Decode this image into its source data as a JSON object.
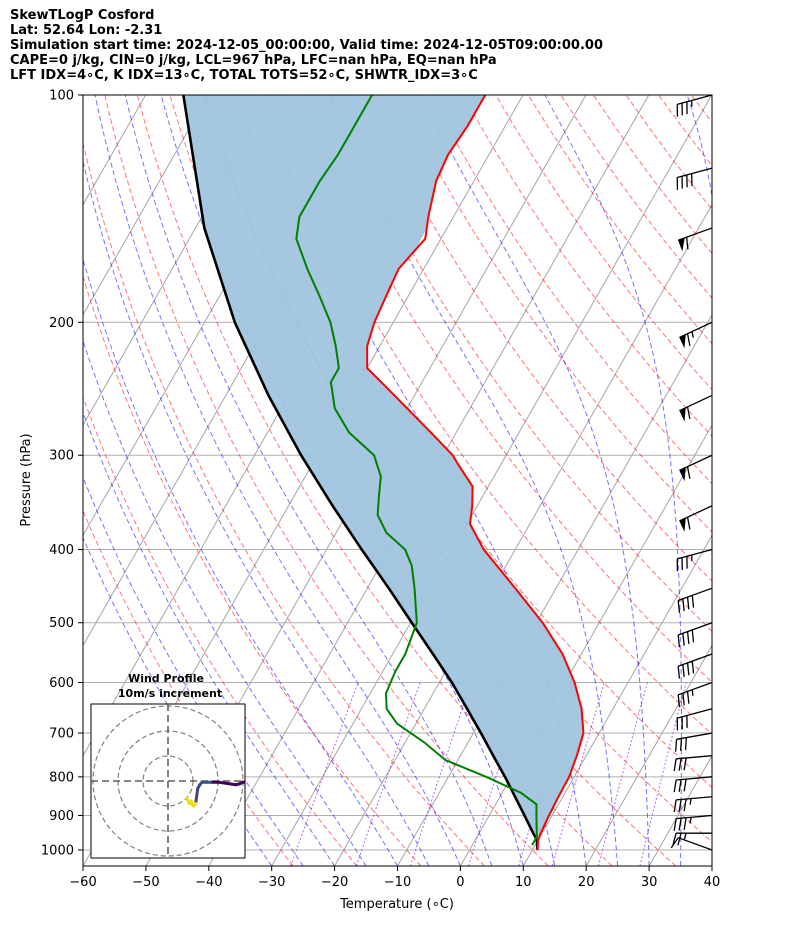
{
  "header": {
    "line1": "SkewTLogP Cosford",
    "line2": "Lat: 52.64   Lon: -2.31",
    "line3": "Simulation start time: 2024-12-05_00:00:00, Valid time: 2024-12-05T09:00:00.00",
    "line4": "CAPE=0 j/kg, CIN=0 j/kg, LCL=967 hPa, LFC=nan hPa, EQ=nan hPa",
    "line5": "LFT IDX=4∘C, K IDX=13∘C, TOTAL TOTS=52∘C, SHWTR_IDX=3∘C"
  },
  "chart_data": {
    "type": "line",
    "subtype": "skew-t log-p",
    "xlabel": "Temperature (∘C)",
    "ylabel": "Pressure (hPa)",
    "xlim": [
      -60,
      40
    ],
    "ylim": [
      1050,
      100
    ],
    "yscale": "log",
    "x_ticks": [
      "−60",
      "−50",
      "−40",
      "−30",
      "−20",
      "−10",
      "0",
      "10",
      "20",
      "30",
      "40"
    ],
    "y_ticks": [
      "100",
      "200",
      "300",
      "400",
      "500",
      "600",
      "700",
      "800",
      "900",
      "1000"
    ],
    "grid": true,
    "colors": {
      "temperature": "#ff0000",
      "dewpoint": "#008000",
      "parcel": "#000000",
      "cape_fill": "#a0c4de",
      "dry_adiabats": "#ff0000",
      "moist_adiabats": "#0000ff",
      "mixing_ratio": "#9400d3",
      "isotherms": "#a6a6a6"
    },
    "series": [
      {
        "pressure": [
          1000,
          970,
          950,
          900,
          850,
          800,
          750,
          700,
          650,
          600,
          550,
          500,
          450,
          400,
          370,
          350,
          330,
          310,
          300,
          280,
          260,
          240,
          230,
          215,
          200,
          185,
          170,
          155,
          145,
          130,
          120,
          110,
          100
        ],
        "values": [
          10.8,
          10.0,
          9.8,
          9.5,
          9.3,
          9.2,
          8.5,
          7.5,
          5.0,
          1.5,
          -3.0,
          -9.0,
          -16.5,
          -25.0,
          -29.5,
          -30.8,
          -32.5,
          -36.5,
          -38.5,
          -44.0,
          -50.0,
          -56.5,
          -60.0,
          -62.0,
          -63.0,
          -63.5,
          -64.0,
          -62.5,
          -64.0,
          -66.0,
          -66.5,
          -66.0,
          -66.0
        ]
      },
      {
        "pressure": [
          985,
          960,
          930,
          900,
          870,
          840,
          800,
          760,
          720,
          680,
          650,
          620,
          580,
          550,
          500,
          450,
          420,
          400,
          380,
          360,
          340,
          320,
          300,
          280,
          260,
          240,
          230,
          215,
          200,
          185,
          170,
          155,
          145,
          130,
          120,
          110,
          100
        ],
        "values": [
          9.5,
          9.5,
          8.5,
          7.5,
          6.5,
          3.0,
          -4.0,
          -12.0,
          -17.0,
          -23.0,
          -26.0,
          -27.5,
          -28.0,
          -28.0,
          -29.0,
          -32.5,
          -35.0,
          -37.5,
          -42.0,
          -45.0,
          -46.5,
          -48.0,
          -51.0,
          -57.0,
          -61.5,
          -64.5,
          -64.5,
          -67.0,
          -70.0,
          -74.0,
          -78.5,
          -83.0,
          -84.5,
          -84.5,
          -84.0,
          -84.0,
          -84.0
        ]
      },
      {
        "pressure": [
          1000,
          970,
          950,
          900,
          850,
          800,
          750,
          700,
          650,
          600,
          550,
          500,
          450,
          400,
          350,
          300,
          250,
          200,
          150,
          100
        ],
        "values": [
          10.8,
          9.8,
          8.6,
          5.6,
          2.4,
          -1.0,
          -4.8,
          -8.8,
          -13.2,
          -18.0,
          -23.6,
          -29.8,
          -36.6,
          -44.4,
          -53.0,
          -62.6,
          -73.2,
          -85.2,
          -98.6,
          -114.0
        ]
      }
    ],
    "winds": {
      "units": "knots",
      "pressure": [
        1000,
        950,
        900,
        850,
        800,
        750,
        700,
        650,
        600,
        550,
        500,
        450,
        400,
        350,
        300,
        250,
        200,
        150,
        125,
        100
      ],
      "speed": [
        10,
        25,
        35,
        35,
        30,
        30,
        30,
        30,
        35,
        40,
        40,
        40,
        35,
        60,
        60,
        60,
        65,
        60,
        40,
        35
      ],
      "direction": [
        250,
        270,
        275,
        275,
        275,
        275,
        280,
        285,
        290,
        290,
        290,
        290,
        285,
        295,
        295,
        295,
        295,
        290,
        285,
        285
      ]
    },
    "inset": {
      "title_line1": "Wind Profile",
      "title_line2": "10m/s increment",
      "u": [
        9,
        10,
        11,
        11,
        12,
        13,
        14,
        15,
        16,
        18,
        20,
        24,
        28,
        32,
        34,
        35,
        36,
        36.5
      ],
      "v": [
        -7,
        -9,
        -8,
        -9,
        -10,
        -9,
        -3,
        -1.5,
        -0.5,
        -0.5,
        -0.5,
        -0.5,
        -1,
        -1.5,
        -1,
        -0.5,
        -0.5,
        0
      ],
      "speed_colors": [
        "#e8e020",
        "#e8e020",
        "#e8e020",
        "#e8e020",
        "#e8e020",
        "#e8e020",
        "#414487",
        "#414487",
        "#3b528b",
        "#3b528b",
        "#3b528b",
        "#440154",
        "#440154",
        "#440154",
        "#440154",
        "#440154",
        "#440154",
        "#440154"
      ]
    }
  }
}
